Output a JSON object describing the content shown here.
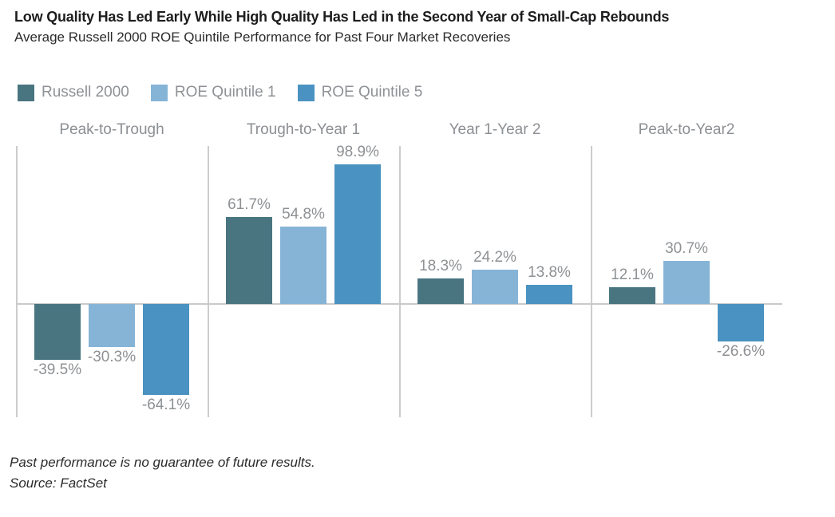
{
  "chart_data": {
    "type": "bar",
    "title": "Low Quality Has Led Early While High Quality Has Led in the Second Year of Small-Cap Rebounds",
    "subtitle": "Average Russell 2000 ROE Quintile Performance for Past Four Market Recoveries",
    "categories": [
      "Peak-to-Trough",
      "Trough-to-Year 1",
      "Year 1-Year 2",
      "Peak-to-Year2"
    ],
    "series": [
      {
        "name": "Russell 2000",
        "color": "#497580",
        "values": [
          -39.5,
          61.7,
          18.3,
          12.1
        ]
      },
      {
        "name": "ROE Quintile 1",
        "color": "#86b4d7",
        "values": [
          -30.3,
          54.8,
          24.2,
          30.7
        ]
      },
      {
        "name": "ROE Quintile 5",
        "color": "#4a92c1",
        "values": [
          -64.1,
          98.9,
          13.8,
          -26.6
        ]
      }
    ],
    "value_suffix": "%",
    "ylim": [
      -80,
      112
    ],
    "grid": false,
    "legend_position": "top-left",
    "axis_line_color": "#c9cacb",
    "label_color": "#8e9194"
  },
  "footer": {
    "disclaimer": "Past performance is no guarantee of future results.",
    "source": "Source: FactSet"
  }
}
